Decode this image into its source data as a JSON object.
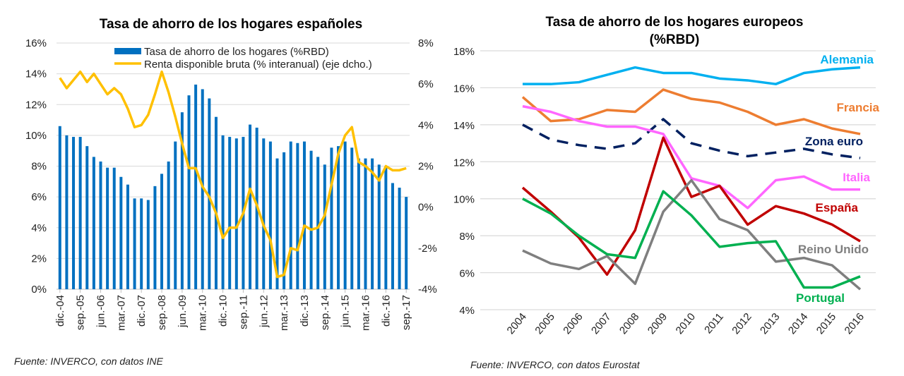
{
  "chart_data": [
    {
      "type": "bar+line",
      "title": "Tasa de ahorro de los hogares españoles",
      "source": "Fuente: INVERCO, con datos INE",
      "x_tick_labels": [
        "dic.-04",
        "sep.-05",
        "jun.-06",
        "mar.-07",
        "dic.-07",
        "sep.-08",
        "jun.-09",
        "mar.-10",
        "dic.-10",
        "sep.-11",
        "jun.-12",
        "mar.-13",
        "dic.-13",
        "sep.-14",
        "jun.-15",
        "mar.-16",
        "dic.-16",
        "sep.-17"
      ],
      "x_range": [
        "dic.-04",
        "sep.-17"
      ],
      "frequency": "quarterly",
      "y_left": {
        "range": [
          0,
          16
        ],
        "ticks": [
          "0%",
          "2%",
          "4%",
          "6%",
          "8%",
          "10%",
          "12%",
          "14%",
          "16%"
        ]
      },
      "y_right": {
        "range": [
          -4,
          8
        ],
        "ticks": [
          "-4%",
          "-2%",
          "0%",
          "2%",
          "4%",
          "6%",
          "8%"
        ]
      },
      "grid": true,
      "legend": "top",
      "series": [
        {
          "name": "Tasa de ahorro de los hogares (%RBD)",
          "type": "bar",
          "axis": "left",
          "color": "#0070C0",
          "values": [
            10.6,
            10.0,
            9.9,
            9.9,
            9.3,
            8.6,
            8.3,
            7.9,
            7.9,
            7.3,
            6.8,
            5.9,
            5.9,
            5.8,
            6.7,
            7.5,
            8.3,
            9.6,
            11.5,
            12.6,
            13.3,
            13.0,
            12.4,
            11.2,
            10.0,
            9.9,
            9.8,
            9.9,
            10.7,
            10.5,
            9.8,
            9.6,
            8.5,
            8.9,
            9.6,
            9.5,
            9.6,
            9.0,
            8.6,
            8.1,
            9.2,
            9.3,
            9.6,
            9.2,
            8.5,
            8.5,
            8.5,
            8.1,
            7.9,
            6.9,
            6.6,
            6.0
          ]
        },
        {
          "name": "Renta disponible bruta (% interanual) (eje dcho.)",
          "type": "line",
          "axis": "right",
          "color": "#FFC000",
          "values": [
            6.3,
            5.8,
            6.2,
            6.6,
            6.1,
            6.5,
            6.0,
            5.5,
            5.8,
            5.5,
            4.8,
            3.9,
            4.0,
            4.5,
            5.5,
            6.6,
            5.6,
            4.4,
            3.1,
            1.9,
            1.9,
            1.0,
            0.5,
            -0.3,
            -1.5,
            -1.0,
            -1.0,
            -0.3,
            0.9,
            0.1,
            -0.9,
            -1.6,
            -3.4,
            -3.3,
            -2.0,
            -2.1,
            -0.9,
            -1.1,
            -1.0,
            -0.4,
            1.1,
            2.6,
            3.5,
            3.9,
            2.2,
            2.0,
            1.7,
            1.3,
            2.0,
            1.8,
            1.8,
            1.9
          ]
        }
      ]
    },
    {
      "type": "line",
      "title": "Tasa de ahorro de los hogares europeos",
      "title_line2": "(%RBD)",
      "source": "Fuente: INVERCO, con datos Eurostat",
      "categories": [
        "2004",
        "2005",
        "2006",
        "2007",
        "2008",
        "2009",
        "2010",
        "2011",
        "2012",
        "2013",
        "2014",
        "2015",
        "2016"
      ],
      "y_range": [
        4,
        18
      ],
      "y_ticks": [
        "4%",
        "6%",
        "8%",
        "10%",
        "12%",
        "14%",
        "16%",
        "18%"
      ],
      "grid": true,
      "legend": "inline-labels-right",
      "series": [
        {
          "name": "Alemania",
          "color": "#00B0F0",
          "dashed": false,
          "values": [
            16.2,
            16.2,
            16.3,
            16.7,
            17.1,
            16.8,
            16.8,
            16.5,
            16.4,
            16.2,
            16.8,
            17.0,
            17.1
          ]
        },
        {
          "name": "Francia",
          "color": "#ED7D31",
          "dashed": false,
          "values": [
            15.5,
            14.2,
            14.3,
            14.8,
            14.7,
            15.9,
            15.4,
            15.2,
            14.7,
            14.0,
            14.3,
            13.8,
            13.5
          ]
        },
        {
          "name": "Zona euro",
          "color": "#002060",
          "dashed": true,
          "values": [
            14.0,
            13.2,
            12.9,
            12.7,
            13.0,
            14.3,
            13.0,
            12.6,
            12.3,
            12.5,
            12.7,
            12.4,
            12.2
          ]
        },
        {
          "name": "Italia",
          "color": "#FF66FF",
          "dashed": false,
          "values": [
            15.0,
            14.7,
            14.2,
            13.9,
            13.9,
            13.5,
            11.1,
            10.7,
            9.5,
            11.0,
            11.2,
            10.5,
            10.5
          ]
        },
        {
          "name": "España",
          "color": "#C00000",
          "dashed": false,
          "values": [
            10.6,
            9.3,
            7.9,
            5.9,
            8.3,
            13.3,
            10.1,
            10.7,
            8.6,
            9.6,
            9.2,
            8.6,
            7.7
          ]
        },
        {
          "name": "Reino Unido",
          "color": "#7F7F7F",
          "dashed": false,
          "values": [
            7.2,
            6.5,
            6.2,
            6.9,
            5.4,
            9.3,
            11.0,
            8.9,
            8.3,
            6.6,
            6.8,
            6.4,
            5.1
          ]
        },
        {
          "name": "Portugal",
          "color": "#00B050",
          "dashed": false,
          "values": [
            10.0,
            9.2,
            8.0,
            7.0,
            6.8,
            10.4,
            9.1,
            7.4,
            7.6,
            7.7,
            5.2,
            5.2,
            5.8
          ]
        }
      ]
    }
  ]
}
